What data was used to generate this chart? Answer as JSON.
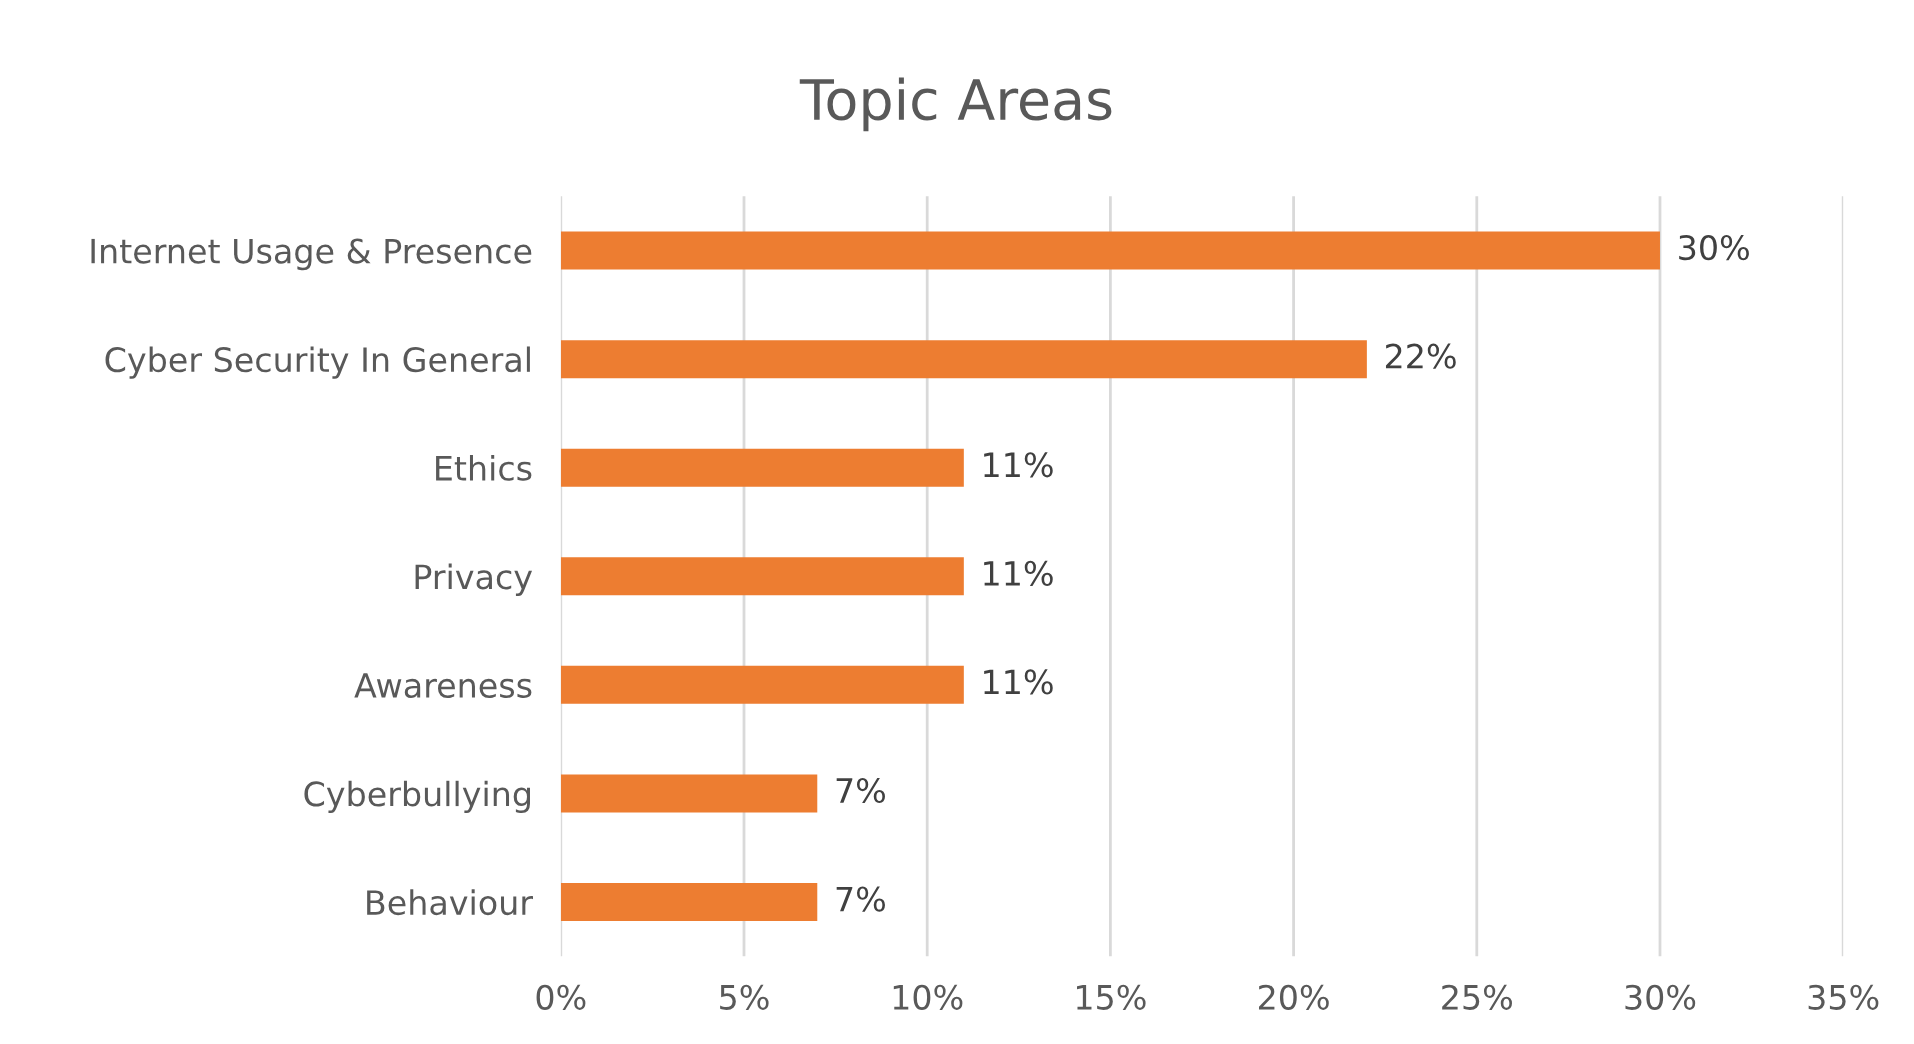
{
  "chart_data": {
    "type": "bar",
    "orientation": "horizontal",
    "title": "Topic Areas",
    "categories": [
      "Internet Usage & Presence",
      "Cyber Security In General",
      "Ethics",
      "Privacy",
      "Awareness",
      "Cyberbullying",
      "Behaviour"
    ],
    "values": [
      30,
      22,
      11,
      11,
      11,
      7,
      7
    ],
    "color": "#ed7d31",
    "value_labels": [
      "30%",
      "22%",
      "11%",
      "11%",
      "11%",
      "7%",
      "7%"
    ],
    "xlim": [
      0,
      35
    ],
    "xticks": [
      {
        "value": 0,
        "label": "0%"
      },
      {
        "value": 5,
        "label": "5%"
      },
      {
        "value": 10,
        "label": "10%"
      },
      {
        "value": 15,
        "label": "15%"
      },
      {
        "value": 20,
        "label": "20%"
      },
      {
        "value": 25,
        "label": "25%"
      },
      {
        "value": 30,
        "label": "30%"
      },
      {
        "value": 35,
        "label": "35%"
      }
    ],
    "grid": "x",
    "legend": false
  }
}
